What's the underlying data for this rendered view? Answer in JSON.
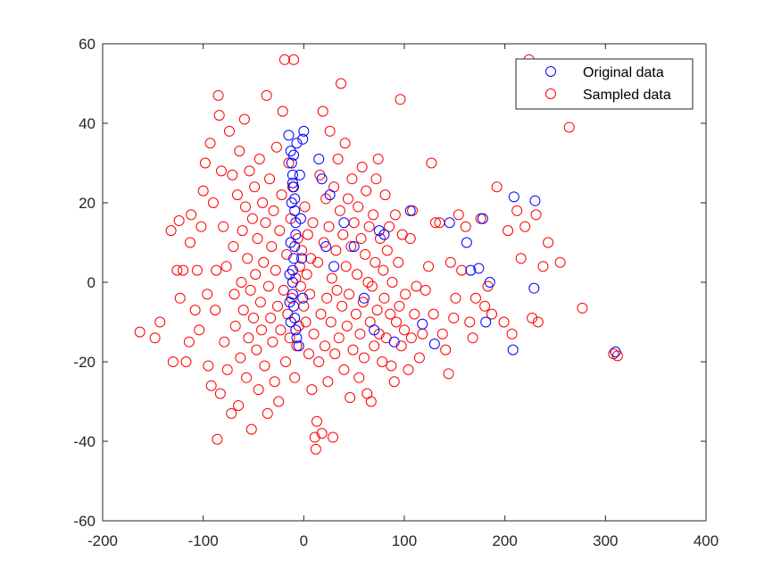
{
  "chart_data": {
    "type": "scatter",
    "title": "",
    "xlabel": "",
    "ylabel": "",
    "xlim": [
      -200,
      400
    ],
    "ylim": [
      -60,
      60
    ],
    "xticks": [
      -200,
      -100,
      0,
      100,
      200,
      300,
      400
    ],
    "yticks": [
      -60,
      -40,
      -20,
      0,
      20,
      40,
      60
    ],
    "xtick_labels": [
      "-200",
      "-100",
      "0",
      "100",
      "200",
      "300",
      "400"
    ],
    "ytick_labels": [
      "-60",
      "-40",
      "-20",
      "0",
      "20",
      "40",
      "60"
    ],
    "grid": false,
    "box": true,
    "legend_position": "top-right",
    "series": [
      {
        "name": "Sampled data",
        "color": "#ff0000",
        "marker": "circle-open",
        "points": [
          [
            -163,
            -12.5
          ],
          [
            -148,
            -14
          ],
          [
            -143,
            -10
          ],
          [
            -132,
            13
          ],
          [
            -130,
            -20
          ],
          [
            -126,
            3
          ],
          [
            -124,
            15.5
          ],
          [
            -123,
            -4
          ],
          [
            -120,
            3
          ],
          [
            -117,
            -20
          ],
          [
            -114,
            -15
          ],
          [
            -113,
            10
          ],
          [
            -112,
            17
          ],
          [
            -108,
            -7
          ],
          [
            -106,
            3
          ],
          [
            -104,
            -12
          ],
          [
            -102,
            14
          ],
          [
            -100,
            23
          ],
          [
            -98,
            30
          ],
          [
            -96,
            -3
          ],
          [
            -95,
            -21
          ],
          [
            -93,
            35
          ],
          [
            -92,
            -26
          ],
          [
            -90,
            20
          ],
          [
            -88,
            -7
          ],
          [
            -87,
            3
          ],
          [
            -86,
            -39.5
          ],
          [
            -85,
            47
          ],
          [
            -84,
            42
          ],
          [
            -83,
            -28
          ],
          [
            -82,
            28
          ],
          [
            -80,
            14
          ],
          [
            -79,
            -15
          ],
          [
            -77,
            4
          ],
          [
            -76,
            -22
          ],
          [
            -74,
            38
          ],
          [
            -72,
            -33
          ],
          [
            -71,
            27
          ],
          [
            -70,
            9
          ],
          [
            -69,
            -3
          ],
          [
            -68,
            -11
          ],
          [
            -66,
            22
          ],
          [
            -65,
            -31
          ],
          [
            -64,
            33
          ],
          [
            -63,
            -19
          ],
          [
            -62,
            0
          ],
          [
            -61,
            13
          ],
          [
            -60,
            -7
          ],
          [
            -59,
            41
          ],
          [
            -58,
            19
          ],
          [
            -57,
            -24
          ],
          [
            -56,
            6
          ],
          [
            -55,
            -14
          ],
          [
            -54,
            28
          ],
          [
            -53,
            -2
          ],
          [
            -52,
            -37
          ],
          [
            -51,
            16
          ],
          [
            -50,
            -9
          ],
          [
            -49,
            24
          ],
          [
            -48,
            2
          ],
          [
            -47,
            -17
          ],
          [
            -46,
            11
          ],
          [
            -45,
            -27
          ],
          [
            -44,
            31
          ],
          [
            -43,
            -5
          ],
          [
            -42,
            -12
          ],
          [
            -41,
            20
          ],
          [
            -40,
            5
          ],
          [
            -39,
            -21
          ],
          [
            -38,
            15
          ],
          [
            -37,
            47
          ],
          [
            -36,
            -33
          ],
          [
            -35,
            -1
          ],
          [
            -34,
            26
          ],
          [
            -33,
            -9
          ],
          [
            -32,
            9
          ],
          [
            -31,
            -15
          ],
          [
            -30,
            18
          ],
          [
            -29,
            -25
          ],
          [
            -28,
            3
          ],
          [
            -27,
            34
          ],
          [
            -26,
            -6
          ],
          [
            -25,
            -30
          ],
          [
            -24,
            13
          ],
          [
            -23,
            -12
          ],
          [
            -22,
            22
          ],
          [
            -21,
            43
          ],
          [
            -20,
            -2
          ],
          [
            -19,
            56
          ],
          [
            -18,
            -20
          ],
          [
            -17,
            7
          ],
          [
            -16,
            -8
          ],
          [
            -15,
            30
          ],
          [
            -14,
            -14
          ],
          [
            -13,
            16
          ],
          [
            -12,
            -4
          ],
          [
            -11,
            24
          ],
          [
            -10,
            56
          ],
          [
            -9,
            -24
          ],
          [
            -8,
            1
          ],
          [
            -7,
            -16
          ],
          [
            -6,
            11
          ],
          [
            -5,
            -11
          ],
          [
            -4,
            4
          ],
          [
            -3,
            -1
          ],
          [
            -2,
            8
          ],
          [
            0,
            -6
          ],
          [
            1,
            19
          ],
          [
            2,
            -10
          ],
          [
            3,
            2
          ],
          [
            4,
            12
          ],
          [
            5,
            -18
          ],
          [
            6,
            -3
          ],
          [
            7,
            6
          ],
          [
            8,
            -27
          ],
          [
            9,
            15
          ],
          [
            10,
            -13
          ],
          [
            11,
            -39
          ],
          [
            12,
            -42
          ],
          [
            13,
            -35
          ],
          [
            14,
            5
          ],
          [
            15,
            -20
          ],
          [
            16,
            27
          ],
          [
            17,
            -8
          ],
          [
            18,
            -38
          ],
          [
            19,
            43
          ],
          [
            20,
            10
          ],
          [
            21,
            -16
          ],
          [
            22,
            21
          ],
          [
            23,
            -4
          ],
          [
            24,
            -25
          ],
          [
            25,
            14
          ],
          [
            26,
            38
          ],
          [
            27,
            -10
          ],
          [
            28,
            1
          ],
          [
            29,
            -39
          ],
          [
            30,
            24
          ],
          [
            31,
            -18
          ],
          [
            32,
            8
          ],
          [
            33,
            -2
          ],
          [
            34,
            31
          ],
          [
            35,
            -14
          ],
          [
            36,
            18
          ],
          [
            37,
            50
          ],
          [
            38,
            -6
          ],
          [
            39,
            12
          ],
          [
            40,
            -22
          ],
          [
            41,
            35
          ],
          [
            42,
            4
          ],
          [
            43,
            -11
          ],
          [
            44,
            21
          ],
          [
            45,
            -3
          ],
          [
            46,
            -29
          ],
          [
            47,
            9
          ],
          [
            48,
            26
          ],
          [
            49,
            -17
          ],
          [
            50,
            15
          ],
          [
            52,
            -8
          ],
          [
            53,
            2
          ],
          [
            54,
            19
          ],
          [
            55,
            -24
          ],
          [
            56,
            -13
          ],
          [
            57,
            11
          ],
          [
            58,
            29
          ],
          [
            59,
            -5
          ],
          [
            60,
            -19
          ],
          [
            61,
            7
          ],
          [
            62,
            23
          ],
          [
            63,
            -28
          ],
          [
            64,
            0
          ],
          [
            65,
            14
          ],
          [
            66,
            -10
          ],
          [
            67,
            -30
          ],
          [
            68,
            -1
          ],
          [
            69,
            17
          ],
          [
            70,
            -16
          ],
          [
            71,
            5
          ],
          [
            72,
            26
          ],
          [
            73,
            -7
          ],
          [
            74,
            31
          ],
          [
            75,
            -13
          ],
          [
            76,
            11
          ],
          [
            78,
            -20
          ],
          [
            79,
            3
          ],
          [
            80,
            -4
          ],
          [
            81,
            22
          ],
          [
            82,
            -14
          ],
          [
            83,
            8
          ],
          [
            85,
            14
          ],
          [
            86,
            -8
          ],
          [
            87,
            -21
          ],
          [
            88,
            0
          ],
          [
            90,
            -25
          ],
          [
            91,
            17
          ],
          [
            92,
            -10
          ],
          [
            94,
            5
          ],
          [
            95,
            -6
          ],
          [
            96,
            46
          ],
          [
            97,
            -16
          ],
          [
            98,
            12
          ],
          [
            100,
            -12
          ],
          [
            101,
            -3
          ],
          [
            104,
            -22
          ],
          [
            106,
            11
          ],
          [
            107,
            -14
          ],
          [
            108,
            18
          ],
          [
            110,
            -8
          ],
          [
            112,
            -1
          ],
          [
            115,
            -19
          ],
          [
            118,
            -13
          ],
          [
            121,
            -2
          ],
          [
            124,
            4
          ],
          [
            127,
            30
          ],
          [
            129,
            -8
          ],
          [
            131,
            15
          ],
          [
            135,
            15
          ],
          [
            138,
            -13
          ],
          [
            141,
            -17
          ],
          [
            144,
            -23
          ],
          [
            146,
            5
          ],
          [
            149,
            -9
          ],
          [
            151,
            -4
          ],
          [
            154,
            17
          ],
          [
            157,
            3
          ],
          [
            161,
            14
          ],
          [
            165,
            -10
          ],
          [
            168,
            -14
          ],
          [
            171,
            -4
          ],
          [
            176,
            16
          ],
          [
            180,
            -6
          ],
          [
            183,
            -1
          ],
          [
            187,
            -8
          ],
          [
            192,
            24
          ],
          [
            199,
            -10
          ],
          [
            203,
            13
          ],
          [
            207,
            -13
          ],
          [
            212,
            18
          ],
          [
            216,
            6
          ],
          [
            220,
            14
          ],
          [
            224,
            56
          ],
          [
            227,
            -9
          ],
          [
            231,
            17
          ],
          [
            233,
            -10
          ],
          [
            238,
            4
          ],
          [
            243,
            10
          ],
          [
            255,
            5
          ],
          [
            264,
            39
          ],
          [
            277,
            -6.5
          ],
          [
            308,
            -18
          ],
          [
            312,
            -18.5
          ]
        ]
      },
      {
        "name": "Original data",
        "color": "#0000ff",
        "marker": "circle-open",
        "points": [
          [
            -15,
            37
          ],
          [
            -13,
            33
          ],
          [
            -12,
            30
          ],
          [
            -11,
            27
          ],
          [
            -10,
            24
          ],
          [
            -9,
            21
          ],
          [
            -9,
            18
          ],
          [
            -8,
            15
          ],
          [
            -8,
            12
          ],
          [
            -9,
            9
          ],
          [
            -10,
            6
          ],
          [
            -11,
            3
          ],
          [
            -11,
            0
          ],
          [
            -11,
            -3
          ],
          [
            -10,
            -6
          ],
          [
            -9,
            -9
          ],
          [
            -8,
            -12
          ],
          [
            -7,
            -14
          ],
          [
            -5,
            -16
          ],
          [
            -13,
            -10
          ],
          [
            -14,
            -5
          ],
          [
            -14,
            2
          ],
          [
            -13,
            10
          ],
          [
            -12,
            20
          ],
          [
            -11,
            25
          ],
          [
            -10,
            32
          ],
          [
            -7,
            35
          ],
          [
            -4,
            27
          ],
          [
            -3,
            16
          ],
          [
            -2,
            6
          ],
          [
            -1,
            -4
          ],
          [
            -1,
            36
          ],
          [
            0,
            38
          ],
          [
            15,
            31
          ],
          [
            18,
            26
          ],
          [
            22,
            9
          ],
          [
            26,
            22
          ],
          [
            30,
            4
          ],
          [
            40,
            15
          ],
          [
            50,
            9
          ],
          [
            60,
            -4
          ],
          [
            70,
            -12
          ],
          [
            75,
            13
          ],
          [
            80,
            12
          ],
          [
            90,
            -15
          ],
          [
            106,
            18
          ],
          [
            118,
            -10.5
          ],
          [
            130,
            -15.5
          ],
          [
            145,
            15
          ],
          [
            162,
            10
          ],
          [
            166,
            3
          ],
          [
            174,
            3.5
          ],
          [
            178,
            16
          ],
          [
            181,
            -10
          ],
          [
            185,
            0
          ],
          [
            208,
            -17
          ],
          [
            209,
            21.5
          ],
          [
            229,
            -1.5
          ],
          [
            230,
            20.5
          ],
          [
            310,
            -17.5
          ]
        ]
      }
    ]
  }
}
